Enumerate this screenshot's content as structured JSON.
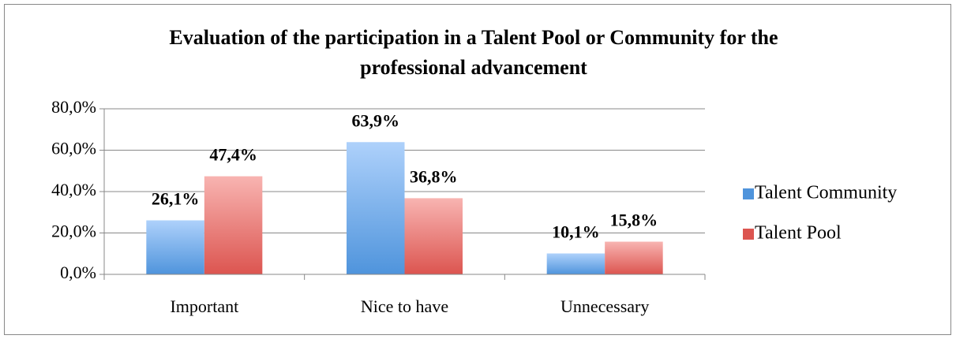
{
  "chart_data": {
    "type": "bar",
    "title": "Evaluation of the participation in a Talent Pool or Community for the professional advancement",
    "categories": [
      "Important",
      "Nice to have",
      "Unnecessary"
    ],
    "series": [
      {
        "name": "Talent Community",
        "color": "#4f94dc",
        "values": [
          26.1,
          63.9,
          10.1
        ],
        "value_labels": [
          "26,1%",
          "63,9%",
          "10,1%"
        ]
      },
      {
        "name": "Talent Pool",
        "color": "#dc5550",
        "values": [
          47.4,
          36.8,
          15.8
        ],
        "value_labels": [
          "47,4%",
          "36,8%",
          "15,8%"
        ]
      }
    ],
    "ylim": [
      0,
      80
    ],
    "yticks": [
      {
        "value": 0,
        "label": "0,0%"
      },
      {
        "value": 20,
        "label": "20,0%"
      },
      {
        "value": 40,
        "label": "40,0%"
      },
      {
        "value": 60,
        "label": "60,0%"
      },
      {
        "value": 80,
        "label": "80,0%"
      }
    ],
    "grid": true,
    "legend": "right"
  }
}
